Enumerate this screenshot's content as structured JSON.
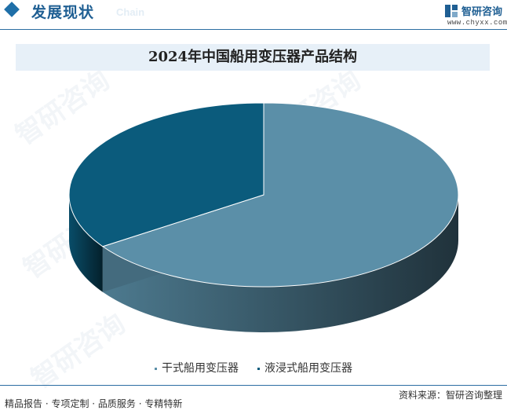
{
  "header": {
    "section_title": "发展现状",
    "section_sub": "Chain",
    "brand_name": "智研咨询",
    "brand_url": "www.chyxx.com"
  },
  "watermark_text": "智研咨询",
  "chart_data": {
    "type": "pie",
    "title": "2024年中国船用变压器产品结构",
    "slices": [
      {
        "name": "干式船用变压器",
        "value": 65.5,
        "color": "#5b8fa8"
      },
      {
        "name": "液浸式船用变压器",
        "value": 34.5,
        "color": "#0b5b7c"
      }
    ],
    "legend_position": "bottom"
  },
  "footer": {
    "left": "精品报告 · 专项定制 · 品质服务 · 专精特新",
    "right": "资料来源：智研咨询整理"
  }
}
